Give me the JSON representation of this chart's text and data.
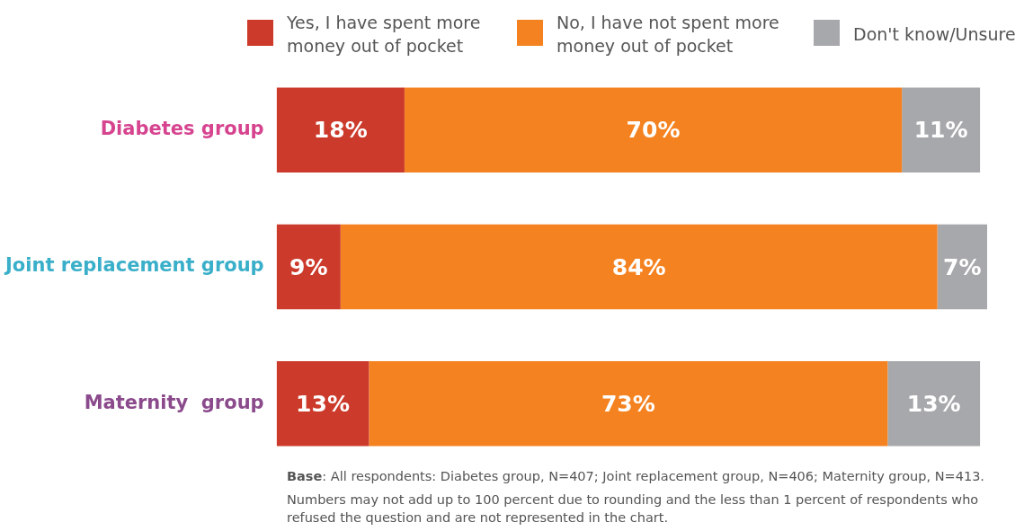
{
  "chart_data": {
    "type": "bar",
    "orientation": "horizontal",
    "stacked": true,
    "categories": [
      "Diabetes group",
      "Joint replacement group",
      "Maternity  group"
    ],
    "series": [
      {
        "name": "Yes, I have spent more money out of pocket",
        "color": "#cc3a2b",
        "values": [
          18,
          9,
          13
        ],
        "value_labels": [
          "18%",
          "9%",
          "13%"
        ]
      },
      {
        "name": "No, I have not spent more money out of pocket",
        "color": "#f58220",
        "values": [
          70,
          84,
          73
        ],
        "value_labels": [
          "70%",
          "84%",
          "73%"
        ]
      },
      {
        "name": "Don't know/Unsure",
        "color": "#a7a8ab",
        "values": [
          11,
          7,
          13
        ],
        "value_labels": [
          "11%",
          "7%",
          "13%"
        ]
      }
    ],
    "tick_labels": "y",
    "legend": "top right",
    "annotations": [
      "Base: All respondents: Diabetes group, N=407; Joint replacement group, N=406; Maternity group, N=413.",
      "Numbers may not add up to 100 percent due to rounding and the less than 1 percent of respondents who refused the question and are not represented in the chart."
    ]
  }
}
